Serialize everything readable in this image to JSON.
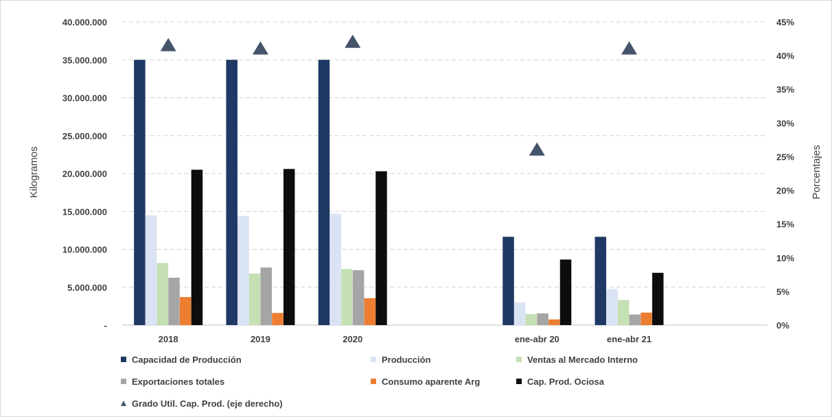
{
  "chart_data": {
    "type": "bar",
    "categories": [
      "2018",
      "2019",
      "2020",
      "",
      "ene-abr 20",
      "ene-abr 21",
      ""
    ],
    "ylabel": "Kilogramos",
    "y2label": "Porcentajes",
    "ylim": [
      0,
      40000000
    ],
    "y2lim": [
      0,
      0.45
    ],
    "yticks": [
      "-",
      "5.000.000",
      "10.000.000",
      "15.000.000",
      "20.000.000",
      "25.000.000",
      "30.000.000",
      "35.000.000",
      "40.000.000"
    ],
    "y2ticks": [
      "0%",
      "5%",
      "10%",
      "15%",
      "20%",
      "25%",
      "30%",
      "35%",
      "40%",
      "45%"
    ],
    "grid": true,
    "legend_position": "bottom",
    "series": [
      {
        "name": "Capacidad de Producción",
        "color": "#1f3864",
        "marker": "square",
        "values": [
          35000000,
          35000000,
          35000000,
          null,
          11650000,
          11650000,
          null
        ]
      },
      {
        "name": "Producción",
        "color": "#dae3f3",
        "marker": "square",
        "values": [
          14500000,
          14400000,
          14700000,
          null,
          3000000,
          4750000,
          null
        ]
      },
      {
        "name": "Ventas al Mercado Interno",
        "color": "#c5e0b4",
        "marker": "square",
        "values": [
          8200000,
          6800000,
          7400000,
          null,
          1450000,
          3300000,
          null
        ]
      },
      {
        "name": "Exportaciones totales",
        "color": "#a5a5a5",
        "marker": "square",
        "values": [
          6250000,
          7600000,
          7250000,
          null,
          1550000,
          1400000,
          null
        ]
      },
      {
        "name": "Consumo aparente Arg",
        "color": "#ed7d31",
        "marker": "square",
        "values": [
          3700000,
          1600000,
          3550000,
          null,
          750000,
          1650000,
          null
        ]
      },
      {
        "name": "Cap. Prod. Ociosa",
        "color": "#0d0d0d",
        "marker": "square",
        "values": [
          20500000,
          20600000,
          20300000,
          null,
          8650000,
          6900000,
          null
        ]
      },
      {
        "name": "Grado Util. Cap. Prod. (eje derecho)",
        "color": "#44546a",
        "marker": "triangle",
        "axis": "right",
        "values": [
          0.415,
          0.41,
          0.42,
          null,
          0.26,
          0.41,
          null
        ]
      }
    ]
  }
}
